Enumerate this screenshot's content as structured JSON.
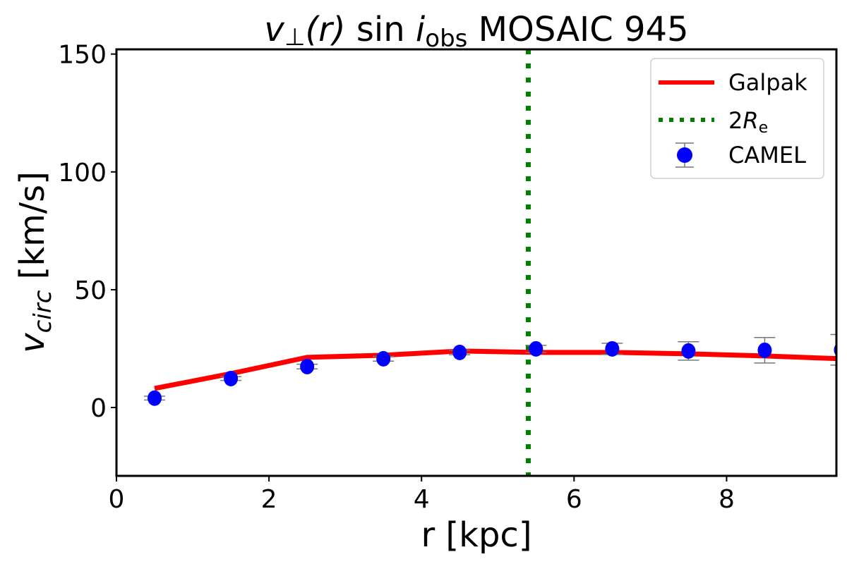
{
  "chart_data": {
    "type": "line",
    "title": {
      "v": "v",
      "perp": "⊥",
      "r": "(r)",
      "sin": "sin",
      "i": "i",
      "obs": "obs",
      "rest": "MOSAIC 945"
    },
    "xlabel": "r [kpc]",
    "ylabel": {
      "v": "v",
      "sub": "circ",
      "unit": "[km/s]"
    },
    "xlim": [
      0,
      9.44
    ],
    "ylim": [
      -29,
      152
    ],
    "xticks": [
      0,
      2,
      4,
      6,
      8
    ],
    "yticks": [
      0,
      50,
      100,
      150
    ],
    "grid": false,
    "legend_position": "top-right",
    "series": [
      {
        "name": "Galpak",
        "style": "solid line",
        "color": "#ff0000",
        "x": [
          0.5,
          1.5,
          2.5,
          3.5,
          4.5,
          5.5,
          6.5,
          7.5,
          8.5,
          9.5
        ],
        "y": [
          8.1,
          14.4,
          21.3,
          22.2,
          24.0,
          23.4,
          23.4,
          22.8,
          21.9,
          20.7
        ]
      },
      {
        "name": "CAMEL",
        "style": "markers with error bars",
        "color": "#0000ff",
        "x": [
          0.5,
          1.5,
          2.5,
          3.5,
          4.5,
          5.5,
          6.5,
          7.5,
          8.5,
          9.5
        ],
        "y": [
          4.0,
          12.3,
          17.4,
          20.7,
          23.4,
          24.9,
          24.9,
          24.0,
          24.3,
          24.5
        ],
        "yerr": [
          0.8,
          0.8,
          1.0,
          1.0,
          1.0,
          1.5,
          2.4,
          3.9,
          5.4,
          6.5
        ]
      },
      {
        "name_prefix": "2",
        "name_R": "R",
        "name_sub": "e",
        "style": "dotted vertical line",
        "color": "#008000",
        "x": 5.4
      }
    ]
  }
}
